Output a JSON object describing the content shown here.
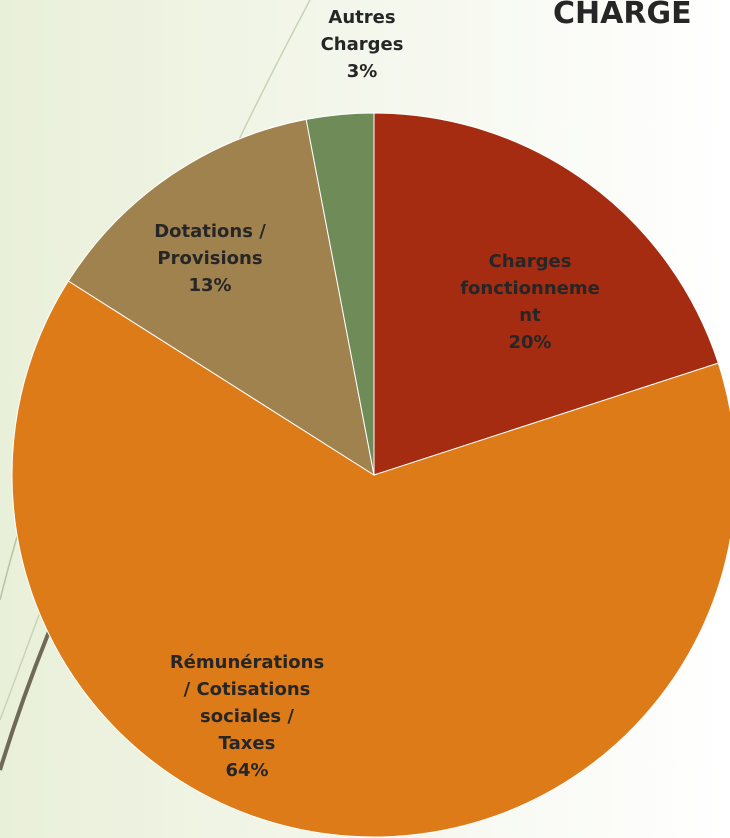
{
  "chart_data": {
    "type": "pie",
    "title": "CHARGE",
    "categories": [
      "Charges\nfonctionneme\nnt",
      "Rémunérations\n/ Cotisations\nsociales /\nTaxes",
      "Dotations /\nProvisions",
      "Autres\nCharges"
    ],
    "values": [
      20,
      64,
      13,
      3
    ],
    "value_labels": [
      "20%",
      "64%",
      "13%",
      "3%"
    ],
    "colors": [
      "#a52c10",
      "#dd7b19",
      "#a0824f",
      "#6f8b57"
    ]
  }
}
